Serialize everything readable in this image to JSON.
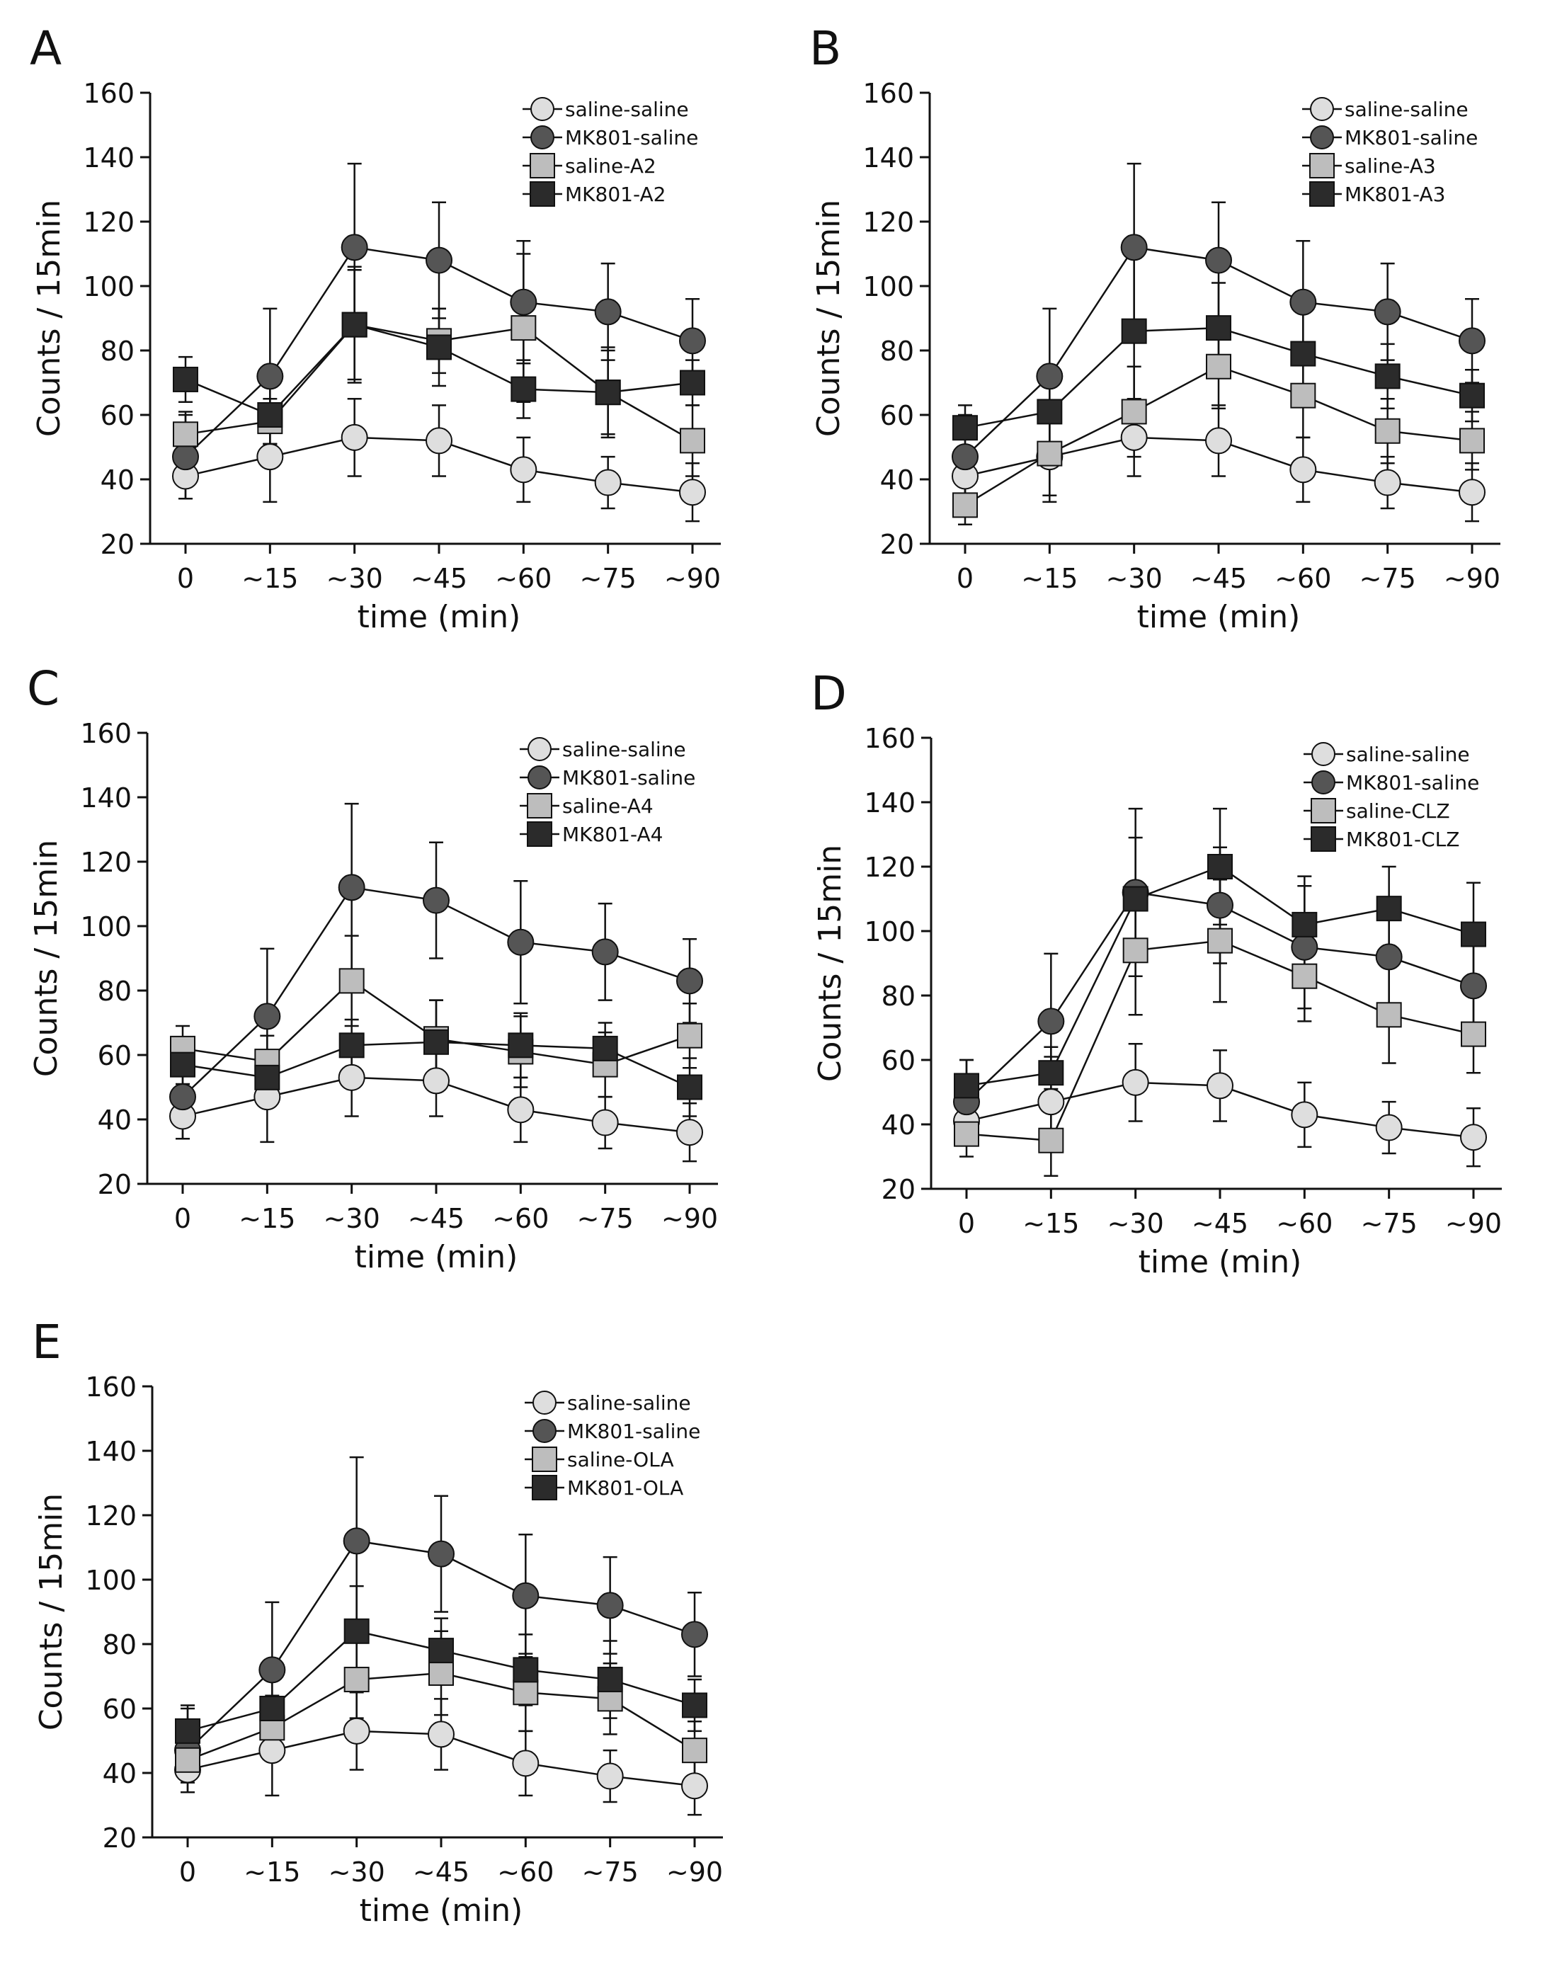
{
  "colors": {
    "saline-saline": "#dedede",
    "MK801-saline": "#555555",
    "drug-saline": "#bdbdbd",
    "drug-MK801": "#2b2b2b",
    "line": "#111111"
  },
  "chart_data": [
    {
      "panel": "A",
      "type": "line",
      "xlabel": "time (min)",
      "ylabel": "Counts / 15min",
      "ylim": [
        20,
        160
      ],
      "yticks": [
        20,
        40,
        60,
        80,
        100,
        120,
        140,
        160
      ],
      "categories": [
        "0",
        "~15",
        "~30",
        "~45",
        "~60",
        "~75",
        "~90"
      ],
      "legend_position": "top-right",
      "series": [
        {
          "name": "saline-saline",
          "marker": "circle",
          "style": "light",
          "values": [
            41,
            47,
            53,
            52,
            43,
            39,
            36
          ],
          "errors": [
            7,
            14,
            12,
            11,
            10,
            8,
            9
          ]
        },
        {
          "name": "MK801-saline",
          "marker": "circle",
          "style": "dark",
          "values": [
            47,
            72,
            112,
            108,
            95,
            92,
            83
          ],
          "errors": [
            13,
            21,
            26,
            18,
            19,
            15,
            13
          ]
        },
        {
          "name": "saline-A2",
          "marker": "square",
          "style": "light",
          "values": [
            54,
            58,
            88,
            83,
            87,
            67,
            52
          ],
          "errors": [
            7,
            7,
            17,
            10,
            23,
            14,
            11
          ]
        },
        {
          "name": "MK801-A2",
          "marker": "square",
          "style": "dark",
          "values": [
            71,
            60,
            88,
            81,
            68,
            67,
            70
          ],
          "errors": [
            7,
            9,
            18,
            12,
            9,
            13,
            7
          ]
        }
      ]
    },
    {
      "panel": "B",
      "type": "line",
      "xlabel": "time (min)",
      "ylabel": "Counts / 15min",
      "ylim": [
        20,
        160
      ],
      "yticks": [
        20,
        40,
        60,
        80,
        100,
        120,
        140,
        160
      ],
      "categories": [
        "0",
        "~15",
        "~30",
        "~45",
        "~60",
        "~75",
        "~90"
      ],
      "legend_position": "top-right",
      "series": [
        {
          "name": "saline-saline",
          "marker": "circle",
          "style": "light",
          "values": [
            41,
            47,
            53,
            52,
            43,
            39,
            36
          ],
          "errors": [
            7,
            14,
            12,
            11,
            10,
            8,
            9
          ]
        },
        {
          "name": "MK801-saline",
          "marker": "circle",
          "style": "dark",
          "values": [
            47,
            72,
            112,
            108,
            95,
            92,
            83
          ],
          "errors": [
            13,
            21,
            26,
            18,
            19,
            15,
            13
          ]
        },
        {
          "name": "saline-A3",
          "marker": "square",
          "style": "light",
          "values": [
            32,
            48,
            61,
            75,
            66,
            55,
            52
          ],
          "errors": [
            6,
            13,
            14,
            13,
            13,
            10,
            9
          ]
        },
        {
          "name": "MK801-A3",
          "marker": "square",
          "style": "dark",
          "values": [
            56,
            61,
            86,
            87,
            79,
            72,
            66
          ],
          "errors": [
            7,
            13,
            24,
            14,
            15,
            10,
            8
          ]
        }
      ]
    },
    {
      "panel": "C",
      "type": "line",
      "xlabel": "time (min)",
      "ylabel": "Counts / 15min",
      "ylim": [
        20,
        160
      ],
      "yticks": [
        20,
        40,
        60,
        80,
        100,
        120,
        140,
        160
      ],
      "categories": [
        "0",
        "~15",
        "~30",
        "~45",
        "~60",
        "~75",
        "~90"
      ],
      "legend_position": "top-right",
      "series": [
        {
          "name": "saline-saline",
          "marker": "circle",
          "style": "light",
          "values": [
            41,
            47,
            53,
            52,
            43,
            39,
            36
          ],
          "errors": [
            7,
            14,
            12,
            11,
            10,
            8,
            9
          ]
        },
        {
          "name": "MK801-saline",
          "marker": "circle",
          "style": "dark",
          "values": [
            47,
            72,
            112,
            108,
            95,
            92,
            83
          ],
          "errors": [
            13,
            21,
            26,
            18,
            19,
            15,
            13
          ]
        },
        {
          "name": "saline-A4",
          "marker": "square",
          "style": "light",
          "values": [
            62,
            58,
            83,
            65,
            61,
            57,
            66
          ],
          "errors": [
            7,
            8,
            14,
            12,
            11,
            10,
            10
          ]
        },
        {
          "name": "MK801-A4",
          "marker": "square",
          "style": "dark",
          "values": [
            57,
            53,
            63,
            64,
            63,
            62,
            50
          ],
          "errors": [
            6,
            7,
            8,
            13,
            10,
            8,
            9
          ]
        }
      ]
    },
    {
      "panel": "D",
      "type": "line",
      "xlabel": "time (min)",
      "ylabel": "Counts / 15min",
      "ylim": [
        20,
        160
      ],
      "yticks": [
        20,
        40,
        60,
        80,
        100,
        120,
        140,
        160
      ],
      "categories": [
        "0",
        "~15",
        "~30",
        "~45",
        "~60",
        "~75",
        "~90"
      ],
      "legend_position": "top-right",
      "series": [
        {
          "name": "saline-saline",
          "marker": "circle",
          "style": "light",
          "values": [
            41,
            47,
            53,
            52,
            43,
            39,
            36
          ],
          "errors": [
            7,
            14,
            12,
            11,
            10,
            8,
            9
          ]
        },
        {
          "name": "MK801-saline",
          "marker": "circle",
          "style": "dark",
          "values": [
            47,
            72,
            112,
            108,
            95,
            92,
            83
          ],
          "errors": [
            13,
            21,
            26,
            18,
            19,
            15,
            13
          ]
        },
        {
          "name": "saline-CLZ",
          "marker": "square",
          "style": "light",
          "values": [
            37,
            35,
            94,
            97,
            86,
            74,
            68
          ],
          "errors": [
            7,
            11,
            20,
            19,
            14,
            15,
            12
          ]
        },
        {
          "name": "MK801-CLZ",
          "marker": "square",
          "style": "dark",
          "values": [
            52,
            56,
            110,
            120,
            102,
            107,
            99
          ],
          "errors": [
            8,
            8,
            19,
            18,
            15,
            13,
            16
          ]
        }
      ]
    },
    {
      "panel": "E",
      "type": "line",
      "xlabel": "time (min)",
      "ylabel": "Counts / 15min",
      "ylim": [
        20,
        160
      ],
      "yticks": [
        20,
        40,
        60,
        80,
        100,
        120,
        140,
        160
      ],
      "categories": [
        "0",
        "~15",
        "~30",
        "~45",
        "~60",
        "~75",
        "~90"
      ],
      "legend_position": "top-right",
      "series": [
        {
          "name": "saline-saline",
          "marker": "circle",
          "style": "light",
          "values": [
            41,
            47,
            53,
            52,
            43,
            39,
            36
          ],
          "errors": [
            7,
            14,
            12,
            11,
            10,
            8,
            9
          ]
        },
        {
          "name": "MK801-saline",
          "marker": "circle",
          "style": "dark",
          "values": [
            47,
            72,
            112,
            108,
            95,
            92,
            83
          ],
          "errors": [
            13,
            21,
            26,
            18,
            19,
            15,
            13
          ]
        },
        {
          "name": "saline-OLA",
          "marker": "square",
          "style": "light",
          "values": [
            44,
            54,
            69,
            71,
            65,
            63,
            47
          ],
          "errors": [
            7,
            10,
            12,
            13,
            12,
            11,
            9
          ]
        },
        {
          "name": "MK801-OLA",
          "marker": "square",
          "style": "dark",
          "values": [
            53,
            60,
            84,
            78,
            72,
            69,
            61
          ],
          "errors": [
            8,
            12,
            14,
            10,
            11,
            12,
            8
          ]
        }
      ]
    }
  ]
}
